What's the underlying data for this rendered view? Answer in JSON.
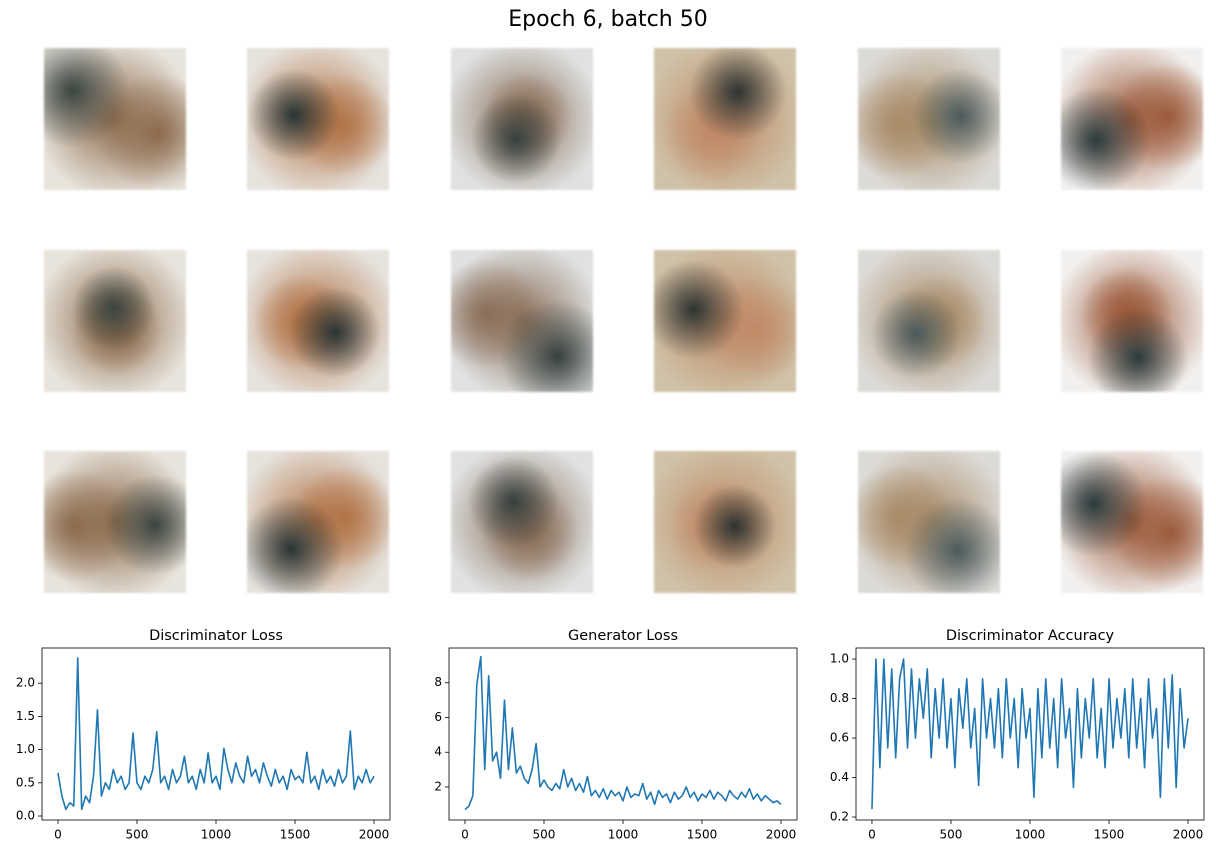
{
  "title": "Epoch 6, batch 50",
  "chart_data": [
    {
      "type": "line",
      "title": "Discriminator Loss",
      "color": "#1f77b4",
      "x": [
        0,
        25,
        50,
        75,
        100,
        125,
        150,
        175,
        200,
        225,
        250,
        275,
        300,
        325,
        350,
        375,
        400,
        425,
        450,
        475,
        500,
        525,
        550,
        575,
        600,
        625,
        650,
        675,
        700,
        725,
        750,
        775,
        800,
        825,
        850,
        875,
        900,
        925,
        950,
        975,
        1000,
        1025,
        1050,
        1075,
        1100,
        1125,
        1150,
        1175,
        1200,
        1225,
        1250,
        1275,
        1300,
        1325,
        1350,
        1375,
        1400,
        1425,
        1450,
        1475,
        1500,
        1525,
        1550,
        1575,
        1600,
        1625,
        1650,
        1675,
        1700,
        1725,
        1750,
        1775,
        1800,
        1825,
        1850,
        1875,
        1900,
        1925,
        1950,
        1975,
        2000
      ],
      "values": [
        0.65,
        0.3,
        0.1,
        0.2,
        0.15,
        2.38,
        0.1,
        0.3,
        0.2,
        0.6,
        1.6,
        0.3,
        0.5,
        0.4,
        0.7,
        0.5,
        0.6,
        0.4,
        0.5,
        1.25,
        0.5,
        0.4,
        0.6,
        0.5,
        0.7,
        1.27,
        0.5,
        0.6,
        0.4,
        0.7,
        0.5,
        0.6,
        0.9,
        0.5,
        0.6,
        0.4,
        0.7,
        0.5,
        0.95,
        0.5,
        0.6,
        0.4,
        1.02,
        0.7,
        0.5,
        0.8,
        0.6,
        0.5,
        0.9,
        0.6,
        0.7,
        0.5,
        0.8,
        0.6,
        0.45,
        0.7,
        0.5,
        0.6,
        0.4,
        0.7,
        0.55,
        0.6,
        0.5,
        0.96,
        0.5,
        0.6,
        0.4,
        0.7,
        0.5,
        0.6,
        0.45,
        0.7,
        0.5,
        0.6,
        1.28,
        0.4,
        0.6,
        0.5,
        0.7,
        0.5,
        0.6
      ],
      "xlim": [
        -101,
        2101
      ],
      "xticks": [
        0,
        500,
        1000,
        1500,
        2000
      ],
      "ylim": [
        -0.06,
        2.53
      ],
      "yticks": [
        {
          "value": 0,
          "label": "0.0"
        },
        0.5,
        {
          "value": 1,
          "label": "1.0"
        },
        1.5,
        {
          "value": 2,
          "label": "2.0"
        }
      ]
    },
    {
      "type": "line",
      "title": "Generator Loss",
      "color": "#1f77b4",
      "x": [
        0,
        25,
        50,
        75,
        100,
        125,
        150,
        175,
        200,
        225,
        250,
        275,
        300,
        325,
        350,
        375,
        400,
        425,
        450,
        475,
        500,
        525,
        550,
        575,
        600,
        625,
        650,
        675,
        700,
        725,
        750,
        775,
        800,
        825,
        850,
        875,
        900,
        925,
        950,
        975,
        1000,
        1025,
        1050,
        1075,
        1100,
        1125,
        1150,
        1175,
        1200,
        1225,
        1250,
        1275,
        1300,
        1325,
        1350,
        1375,
        1400,
        1425,
        1450,
        1475,
        1500,
        1525,
        1550,
        1575,
        1600,
        1625,
        1650,
        1675,
        1700,
        1725,
        1750,
        1775,
        1800,
        1825,
        1850,
        1875,
        1900,
        1925,
        1950,
        1975,
        2000
      ],
      "values": [
        0.7,
        0.9,
        1.5,
        7.9,
        9.5,
        3.0,
        8.4,
        3.5,
        4.0,
        2.5,
        7.0,
        3.0,
        5.4,
        2.8,
        3.2,
        2.5,
        2.2,
        3.0,
        4.5,
        2.0,
        2.4,
        2.0,
        1.8,
        2.2,
        1.9,
        3.0,
        2.0,
        2.5,
        1.8,
        2.2,
        1.7,
        2.6,
        1.5,
        1.8,
        1.4,
        1.9,
        1.3,
        1.8,
        1.5,
        1.7,
        1.2,
        2.0,
        1.4,
        1.6,
        1.5,
        2.2,
        1.3,
        1.7,
        1.0,
        1.8,
        1.4,
        1.6,
        1.1,
        1.7,
        1.3,
        1.5,
        2.0,
        1.4,
        1.7,
        1.2,
        1.6,
        1.4,
        1.8,
        1.3,
        1.7,
        1.5,
        1.2,
        1.8,
        1.5,
        1.3,
        1.7,
        1.4,
        1.9,
        1.3,
        1.6,
        1.2,
        1.5,
        1.3,
        1.1,
        1.2,
        1.0
      ],
      "xlim": [
        -101,
        2101
      ],
      "xticks": [
        0,
        500,
        1000,
        1500,
        2000
      ],
      "ylim": [
        0.1,
        10.0
      ],
      "yticks": [
        2,
        4,
        6,
        8
      ]
    },
    {
      "type": "line",
      "title": "Discriminator Accuracy",
      "color": "#1f77b4",
      "x": [
        0,
        25,
        50,
        75,
        100,
        125,
        150,
        175,
        200,
        225,
        250,
        275,
        300,
        325,
        350,
        375,
        400,
        425,
        450,
        475,
        500,
        525,
        550,
        575,
        600,
        625,
        650,
        675,
        700,
        725,
        750,
        775,
        800,
        825,
        850,
        875,
        900,
        925,
        950,
        975,
        1000,
        1025,
        1050,
        1075,
        1100,
        1125,
        1150,
        1175,
        1200,
        1225,
        1250,
        1275,
        1300,
        1325,
        1350,
        1375,
        1400,
        1425,
        1450,
        1475,
        1500,
        1525,
        1550,
        1575,
        1600,
        1625,
        1650,
        1675,
        1700,
        1725,
        1750,
        1775,
        1800,
        1825,
        1850,
        1875,
        1900,
        1925,
        1950,
        1975,
        2000
      ],
      "values": [
        0.24,
        1.0,
        0.45,
        1.0,
        0.55,
        0.95,
        0.5,
        0.9,
        1.0,
        0.55,
        0.95,
        0.6,
        0.9,
        0.7,
        0.95,
        0.5,
        0.85,
        0.6,
        0.9,
        0.55,
        0.8,
        0.45,
        0.85,
        0.65,
        0.9,
        0.55,
        0.75,
        0.36,
        0.9,
        0.6,
        0.8,
        0.55,
        0.85,
        0.5,
        0.9,
        0.6,
        0.8,
        0.45,
        0.85,
        0.6,
        0.75,
        0.3,
        0.85,
        0.5,
        0.9,
        0.55,
        0.8,
        0.45,
        0.9,
        0.6,
        0.75,
        0.35,
        0.85,
        0.5,
        0.8,
        0.6,
        0.9,
        0.5,
        0.75,
        0.45,
        0.9,
        0.55,
        0.8,
        0.6,
        0.85,
        0.5,
        0.9,
        0.55,
        0.8,
        0.45,
        0.9,
        0.6,
        0.75,
        0.3,
        0.9,
        0.55,
        0.92,
        0.35,
        0.85,
        0.55,
        0.7
      ],
      "xlim": [
        -101,
        2101
      ],
      "xticks": [
        0,
        500,
        1000,
        1500,
        2000
      ],
      "ylim": [
        0.185,
        1.056
      ],
      "yticks": [
        0.2,
        0.4,
        0.6,
        0.8,
        {
          "value": 1,
          "label": "1.0"
        }
      ]
    }
  ]
}
